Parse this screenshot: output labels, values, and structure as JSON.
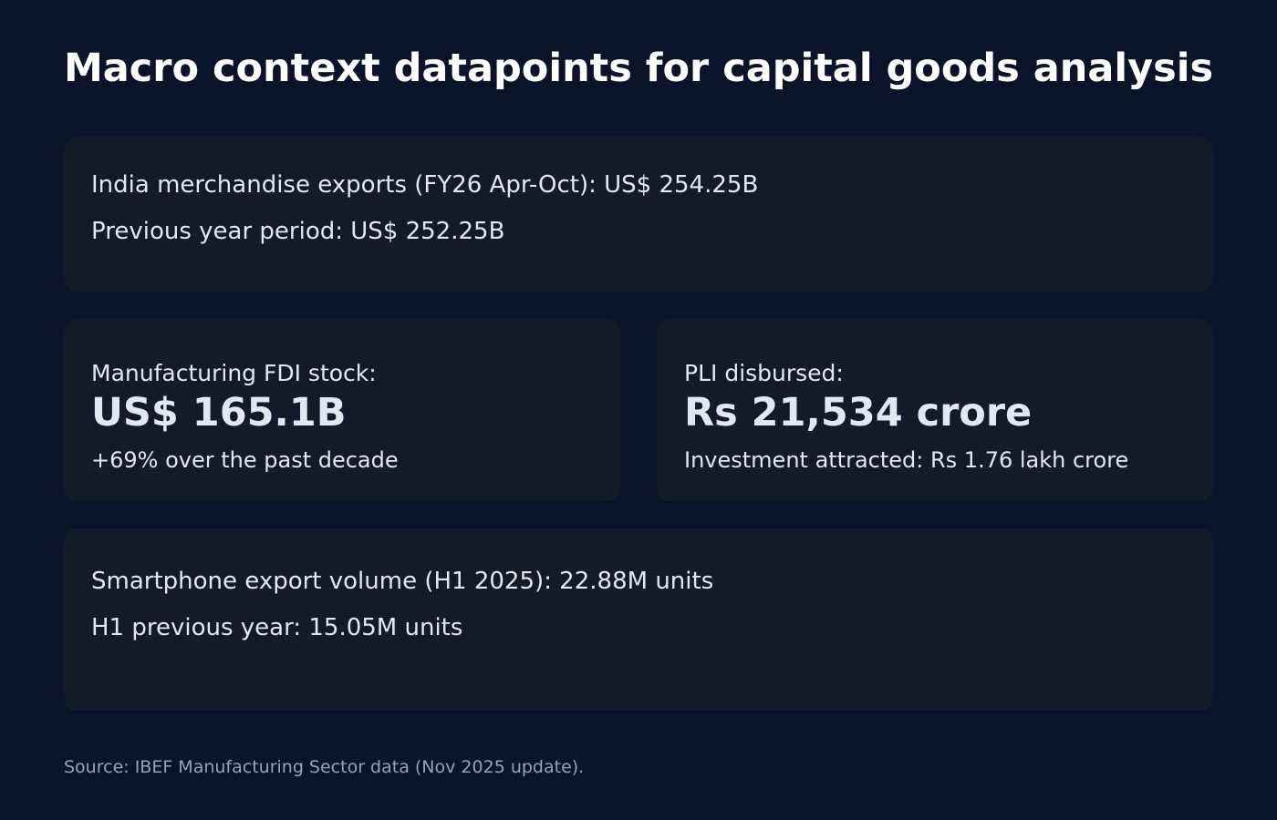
{
  "title": "Macro context datapoints for capital goods analysis",
  "exports": {
    "line1": "India merchandise exports (FY26 Apr-Oct): US$ 254.25B",
    "line2": "Previous year period: US$ 252.25B"
  },
  "fdi": {
    "label": "Manufacturing FDI stock:",
    "value": "US$ 165.1B",
    "note": "+69% over the past decade"
  },
  "pli": {
    "label": "PLI disbursed:",
    "value": "Rs 21,534 crore",
    "note": "Investment attracted: Rs 1.76 lakh crore"
  },
  "smartphone": {
    "line1": "Smartphone export volume (H1 2025): 22.88M units",
    "line2": "H1 previous year: 15.05M units"
  },
  "source": "Source: IBEF Manufacturing Sector data (Nov 2025 update).",
  "colors": {
    "background": "#0b132b",
    "card": "#131a28",
    "text": "#e2e8f0",
    "muted": "#94a3b8"
  }
}
